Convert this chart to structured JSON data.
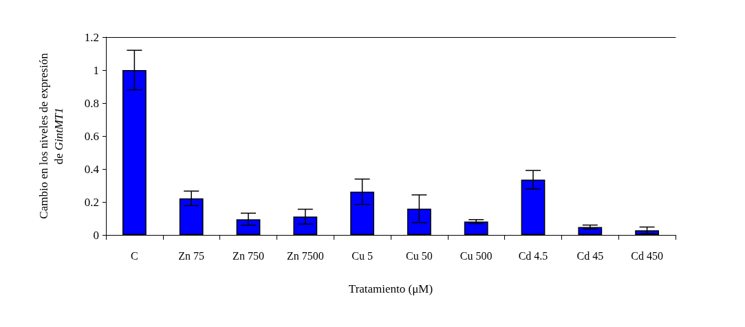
{
  "chart_data": {
    "type": "bar",
    "xlabel": "Tratamiento (μM)",
    "ylabel": "Cambio en los niveles de expresión\nde GintMT1",
    "categories": [
      "C",
      "Zn 75",
      "Zn 750",
      "Zn 7500",
      "Cu 5",
      "Cu 50",
      "Cu 500",
      "Cd 4.5",
      "Cd 45",
      "Cd 450"
    ],
    "values": [
      1.0,
      0.222,
      0.095,
      0.111,
      0.262,
      0.159,
      0.081,
      0.335,
      0.048,
      0.028
    ],
    "errors": [
      0.12,
      0.044,
      0.037,
      0.045,
      0.077,
      0.084,
      0.012,
      0.056,
      0.012,
      0.02
    ],
    "color": "#0000ff",
    "ylim": [
      0,
      1.2
    ],
    "yticks": [
      0,
      0.2,
      0.4,
      0.6,
      0.8,
      1,
      1.2
    ],
    "grid": false
  }
}
